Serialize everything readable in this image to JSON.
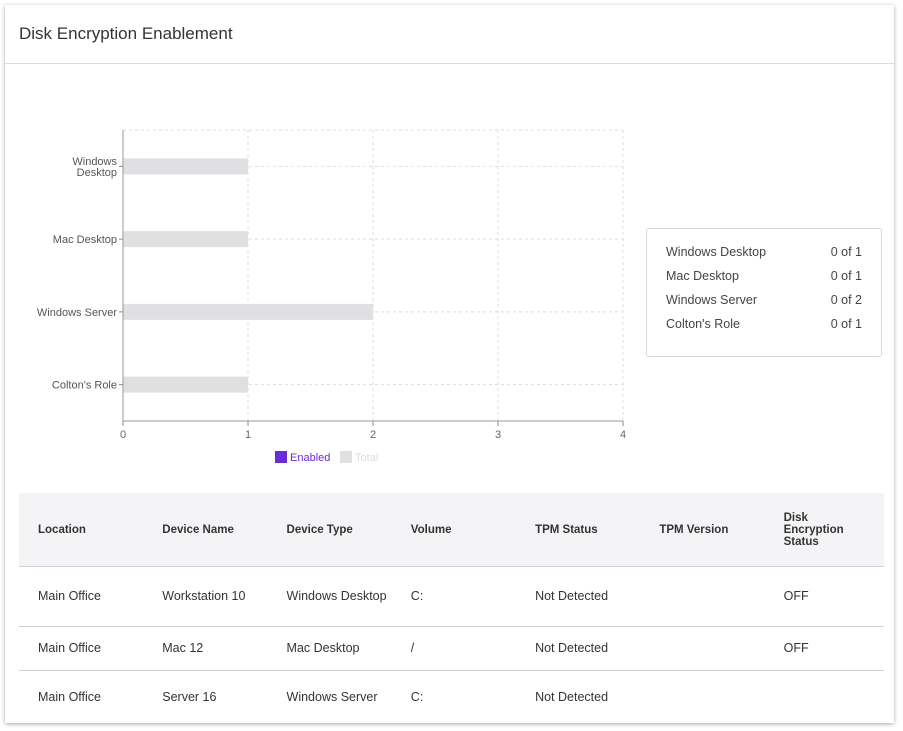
{
  "title": "Disk Encryption Enablement",
  "chart_data": {
    "type": "bar",
    "orientation": "horizontal",
    "categories": [
      "Windows Desktop",
      "Mac Desktop",
      "Windows Server",
      "Colton's Role"
    ],
    "series": [
      {
        "name": "Enabled",
        "values": [
          0,
          0,
          0,
          0
        ],
        "color": "#6c2bd9"
      },
      {
        "name": "Total",
        "values": [
          1,
          1,
          2,
          1
        ],
        "color": "#e0e0e2"
      }
    ],
    "xlim": [
      0,
      4
    ],
    "xticks": [
      0,
      1,
      2,
      3,
      4
    ],
    "grid": true,
    "legend": "bottom"
  },
  "summary": [
    {
      "label": "Windows Desktop",
      "value": "0 of 1"
    },
    {
      "label": "Mac Desktop",
      "value": "0 of 1"
    },
    {
      "label": "Windows Server",
      "value": "0 of 2"
    },
    {
      "label": "Colton's Role",
      "value": "0 of 1"
    }
  ],
  "table": {
    "headers": [
      "Location",
      "Device Name",
      "Device Type",
      "Volume",
      "TPM Status",
      "TPM Version",
      "Disk Encryption Status"
    ],
    "rows": [
      [
        "Main Office",
        "Workstation 10",
        "Windows Desktop",
        "C:",
        "Not Detected",
        "",
        "OFF"
      ],
      [
        "Main Office",
        "Mac 12",
        "Mac Desktop",
        "/",
        "Not Detected",
        "",
        "OFF"
      ],
      [
        "Main Office",
        "Server 16",
        "Windows Server",
        "C:",
        "Not Detected",
        "",
        ""
      ]
    ]
  }
}
